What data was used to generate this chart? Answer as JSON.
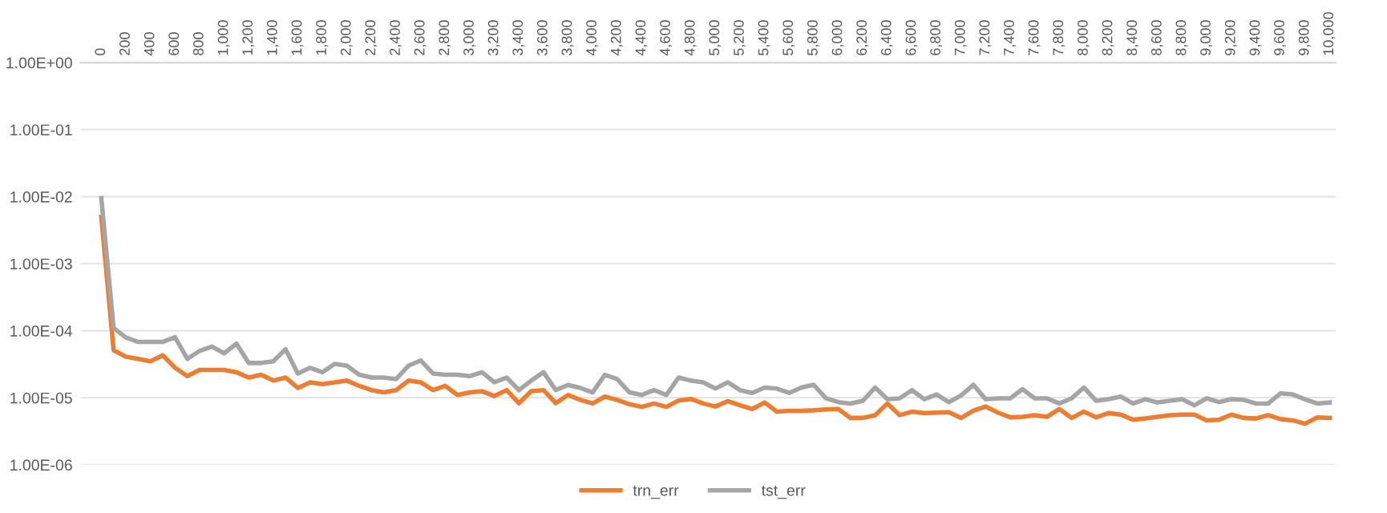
{
  "chart_data": {
    "type": "line",
    "categories": [
      "0",
      null,
      "200",
      null,
      "400",
      null,
      "600",
      null,
      "800",
      null,
      "1,000",
      null,
      "1,200",
      null,
      "1,400",
      null,
      "1,600",
      null,
      "1,800",
      null,
      "2,000",
      null,
      "2,200",
      null,
      "2,400",
      null,
      "2,600",
      null,
      "2,800",
      null,
      "3,000",
      null,
      "3,200",
      null,
      "3,400",
      null,
      "3,600",
      null,
      "3,800",
      null,
      "4,000",
      null,
      "4,200",
      null,
      "4,400",
      null,
      "4,600",
      null,
      "4,800",
      null,
      "5,000",
      null,
      "5,200",
      null,
      "5,400",
      null,
      "5,600",
      null,
      "5,800",
      null,
      "6,000",
      null,
      "6,200",
      null,
      "6,400",
      null,
      "6,600",
      null,
      "6,800",
      null,
      "7,000",
      null,
      "7,200",
      null,
      "7,400",
      null,
      "7,600",
      null,
      "7,800",
      null,
      "8,000",
      null,
      "8,200",
      null,
      "8,400",
      null,
      "8,600",
      null,
      "8,800",
      null,
      "9,000",
      null,
      "9,200",
      null,
      "9,400",
      null,
      "9,600",
      null,
      "9,800",
      null,
      "10,000"
    ],
    "series": [
      {
        "name": "trn_err",
        "color": "#ed7d31",
        "values": [
          0.005,
          5.1e-05,
          4.1e-05,
          3.8e-05,
          3.5e-05,
          4.3e-05,
          2.8e-05,
          2.1e-05,
          2.6e-05,
          2.6e-05,
          2.6e-05,
          2.4e-05,
          2e-05,
          2.2e-05,
          1.8e-05,
          2e-05,
          1.4e-05,
          1.7e-05,
          1.6e-05,
          1.7e-05,
          1.8e-05,
          1.5e-05,
          1.3e-05,
          1.2e-05,
          1.3e-05,
          1.8e-05,
          1.7e-05,
          1.3e-05,
          1.5e-05,
          1.1e-05,
          1.2e-05,
          1.25e-05,
          1.06e-05,
          1.3e-05,
          8.3e-06,
          1.25e-05,
          1.3e-05,
          8.3e-06,
          1.1e-05,
          9.3e-06,
          8.2e-06,
          1.04e-05,
          9.3e-06,
          8e-06,
          7.3e-06,
          8.2e-06,
          7.3e-06,
          9.1e-06,
          9.6e-06,
          8.2e-06,
          7.4e-06,
          8.9e-06,
          7.7e-06,
          6.8e-06,
          8.5e-06,
          6.2e-06,
          6.4e-06,
          6.4e-06,
          6.5e-06,
          6.7e-06,
          6.8e-06,
          5e-06,
          5e-06,
          5.5e-06,
          8.2e-06,
          5.5e-06,
          6.2e-06,
          5.9e-06,
          6e-06,
          6.1e-06,
          5e-06,
          6.4e-06,
          7.4e-06,
          6e-06,
          5.1e-06,
          5.2e-06,
          5.5e-06,
          5.2e-06,
          6.8e-06,
          5e-06,
          6.2e-06,
          5.1e-06,
          5.9e-06,
          5.6e-06,
          4.7e-06,
          4.9e-06,
          5.2e-06,
          5.5e-06,
          5.6e-06,
          5.6e-06,
          4.6e-06,
          4.7e-06,
          5.6e-06,
          5e-06,
          4.9e-06,
          5.5e-06,
          4.8e-06,
          4.6e-06,
          4.1e-06,
          5.1e-06,
          5e-06
        ]
      },
      {
        "name": "tst_err",
        "color": "#a5a5a5",
        "values": [
          0.0095,
          0.00011,
          7.9e-05,
          6.8e-05,
          6.8e-05,
          6.8e-05,
          8e-05,
          3.8e-05,
          5e-05,
          5.8e-05,
          4.6e-05,
          6.4e-05,
          3.3e-05,
          3.3e-05,
          3.5e-05,
          5.3e-05,
          2.3e-05,
          2.8e-05,
          2.4e-05,
          3.2e-05,
          3e-05,
          2.2e-05,
          2e-05,
          2e-05,
          1.9e-05,
          3e-05,
          3.6e-05,
          2.3e-05,
          2.2e-05,
          2.2e-05,
          2.1e-05,
          2.4e-05,
          1.7e-05,
          2e-05,
          1.3e-05,
          1.8e-05,
          2.4e-05,
          1.3e-05,
          1.55e-05,
          1.4e-05,
          1.2e-05,
          2.2e-05,
          1.9e-05,
          1.2e-05,
          1.1e-05,
          1.3e-05,
          1.1e-05,
          2e-05,
          1.8e-05,
          1.7e-05,
          1.37e-05,
          1.7e-05,
          1.3e-05,
          1.18e-05,
          1.42e-05,
          1.37e-05,
          1.18e-05,
          1.42e-05,
          1.56e-05,
          9.8e-06,
          8.6e-06,
          8.2e-06,
          9e-06,
          1.42e-05,
          9.5e-06,
          9.8e-06,
          1.3e-05,
          9.5e-06,
          1.12e-05,
          8.6e-06,
          1.08e-05,
          1.56e-05,
          9.5e-06,
          9.8e-06,
          9.8e-06,
          1.34e-05,
          9.8e-06,
          9.8e-06,
          8.2e-06,
          9.8e-06,
          1.42e-05,
          9e-06,
          9.5e-06,
          1.04e-05,
          8.2e-06,
          9.5e-06,
          8.5e-06,
          9e-06,
          9.5e-06,
          7.7e-06,
          9.8e-06,
          8.6e-06,
          9.5e-06,
          9.3e-06,
          8.2e-06,
          8.2e-06,
          1.16e-05,
          1.12e-05,
          9.5e-06,
          8.2e-06,
          8.5e-06
        ]
      }
    ],
    "log": "y",
    "ylim": [
      1e-06,
      1.0
    ],
    "yticks": [
      {
        "value": 1.0,
        "label": "1.00E+00"
      },
      {
        "value": 0.1,
        "label": "1.00E-01"
      },
      {
        "value": 0.01,
        "label": "1.00E-02"
      },
      {
        "value": 0.001,
        "label": "1.00E-03"
      },
      {
        "value": 0.0001,
        "label": "1.00E-04"
      },
      {
        "value": 1e-05,
        "label": "1.00E-05"
      },
      {
        "value": 1e-06,
        "label": "1.00E-06"
      }
    ],
    "grid": "y",
    "legend": "bottom",
    "marker": "none",
    "line_style": "solid"
  }
}
